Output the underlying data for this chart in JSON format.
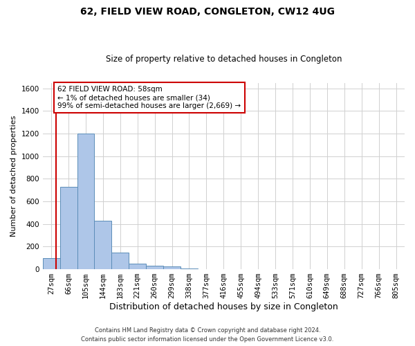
{
  "title": "62, FIELD VIEW ROAD, CONGLETON, CW12 4UG",
  "subtitle": "Size of property relative to detached houses in Congleton",
  "xlabel": "Distribution of detached houses by size in Congleton",
  "ylabel": "Number of detached properties",
  "categories": [
    "27sqm",
    "66sqm",
    "105sqm",
    "144sqm",
    "183sqm",
    "221sqm",
    "260sqm",
    "299sqm",
    "338sqm",
    "377sqm",
    "416sqm",
    "455sqm",
    "494sqm",
    "533sqm",
    "571sqm",
    "610sqm",
    "649sqm",
    "688sqm",
    "727sqm",
    "766sqm",
    "805sqm"
  ],
  "values": [
    100,
    730,
    1200,
    430,
    145,
    50,
    30,
    25,
    5,
    0,
    0,
    0,
    0,
    0,
    0,
    0,
    0,
    0,
    0,
    0,
    0
  ],
  "bar_color": "#aec6e8",
  "bar_edge_color": "#5b8db8",
  "annotation_box_text": "62 FIELD VIEW ROAD: 58sqm\n← 1% of detached houses are smaller (34)\n99% of semi-detached houses are larger (2,669) →",
  "annotation_box_color": "#ffffff",
  "annotation_box_edge_color": "#cc0000",
  "marker_line_color": "#cc0000",
  "ylim": [
    0,
    1650
  ],
  "yticks": [
    0,
    200,
    400,
    600,
    800,
    1000,
    1200,
    1400,
    1600
  ],
  "footer_line1": "Contains HM Land Registry data © Crown copyright and database right 2024.",
  "footer_line2": "Contains public sector information licensed under the Open Government Licence v3.0.",
  "background_color": "#ffffff",
  "grid_color": "#d0d0d0",
  "title_fontsize": 10,
  "subtitle_fontsize": 8.5,
  "ylabel_fontsize": 8,
  "xlabel_fontsize": 9,
  "tick_fontsize": 7.5,
  "footer_fontsize": 6.0,
  "annot_fontsize": 7.5
}
